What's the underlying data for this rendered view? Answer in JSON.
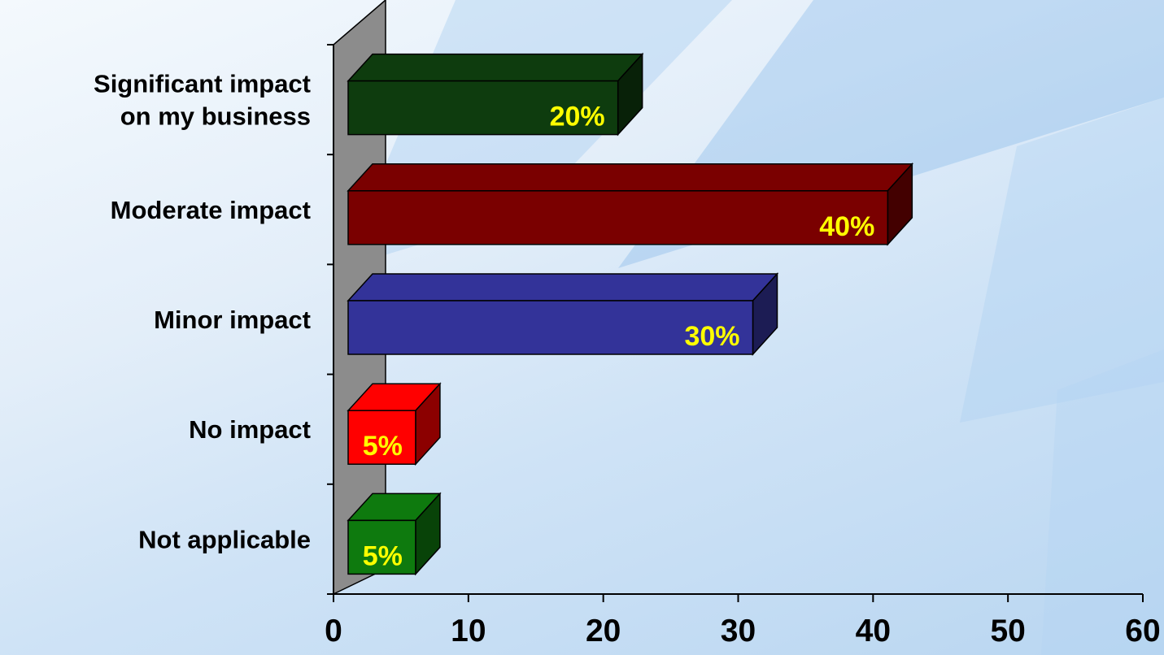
{
  "chart_data": {
    "type": "bar",
    "orientation": "horizontal",
    "three_d": true,
    "categories": [
      [
        "Significant impact",
        "on my business"
      ],
      [
        "Moderate impact"
      ],
      [
        "Minor impact"
      ],
      [
        "No impact"
      ],
      [
        "Not applicable"
      ]
    ],
    "values": [
      20,
      40,
      30,
      5,
      5
    ],
    "data_labels": [
      "20%",
      "40%",
      "30%",
      "5%",
      "5%"
    ],
    "colors": [
      "#0e3c0e",
      "#7a0000",
      "#333399",
      "#ff0000",
      "#0e7a0e"
    ],
    "label_color": "#ffff00",
    "xlim": [
      0,
      60
    ],
    "x_ticks": [
      0,
      10,
      20,
      30,
      40,
      50,
      60
    ],
    "x_tick_labels": [
      "0",
      "10",
      "20",
      "30",
      "40",
      "50",
      "60"
    ],
    "title": "",
    "xlabel": "",
    "ylabel": "",
    "grid": false,
    "legend": false
  }
}
